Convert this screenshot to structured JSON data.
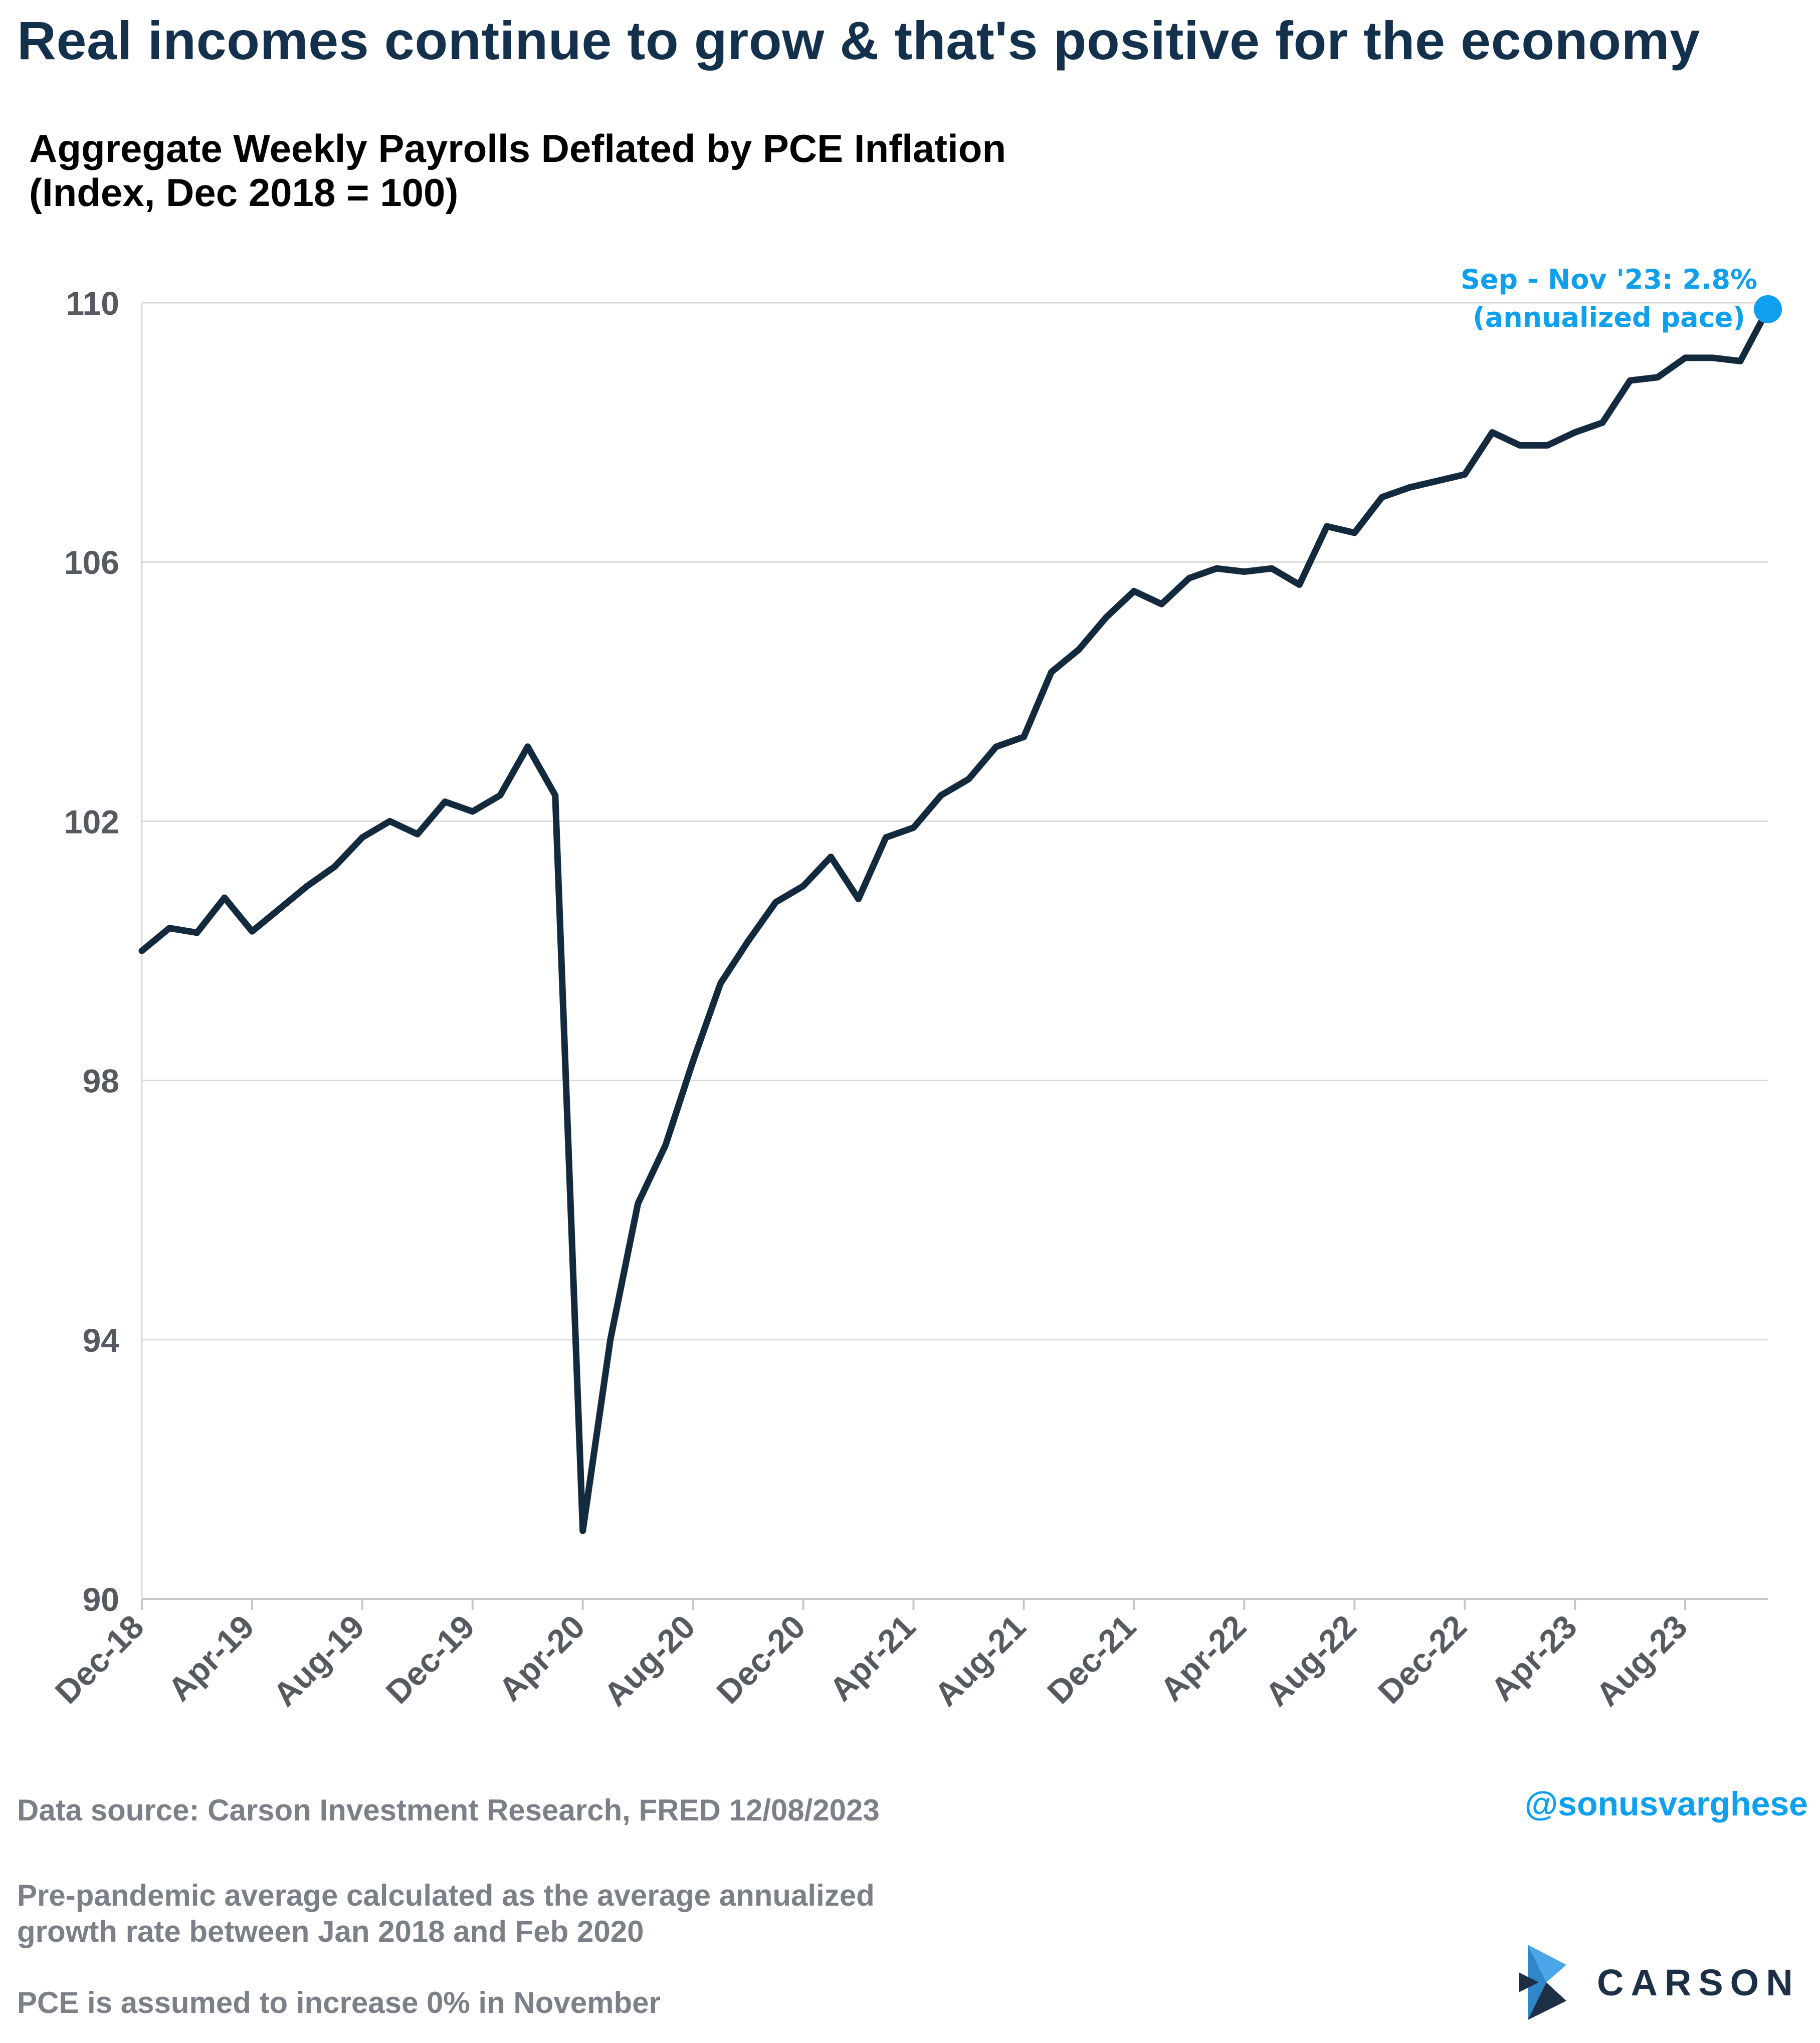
{
  "headline": "Real incomes continue to grow & that's positive for the economy",
  "subtitle": {
    "line1": "Aggregate Weekly Payrolls Deflated by PCE Inflation",
    "line2": "(Index, Dec 2018 = 100)"
  },
  "colors": {
    "headline": "#13304d",
    "line": "#13293d",
    "accent": "#0ea0ee",
    "gridline": "#d9d9d9",
    "axis_text": "#555a60",
    "footer_text": "#7b8088"
  },
  "chart_data": {
    "type": "line",
    "title": "Aggregate Weekly Payrolls Deflated by PCE Inflation",
    "subtitle": "(Index, Dec 2018 = 100)",
    "xlabel": "",
    "ylabel": "",
    "ylim": [
      90,
      110
    ],
    "yticks": [
      90,
      94,
      98,
      102,
      106,
      110
    ],
    "grid": "horizontal",
    "x_tick_labels": [
      "Dec-18",
      "Apr-19",
      "Aug-19",
      "Dec-19",
      "Apr-20",
      "Aug-20",
      "Dec-20",
      "Apr-21",
      "Aug-21",
      "Dec-21",
      "Apr-22",
      "Aug-22",
      "Dec-22",
      "Apr-23",
      "Aug-23"
    ],
    "x": [
      "Dec-18",
      "Jan-19",
      "Feb-19",
      "Mar-19",
      "Apr-19",
      "May-19",
      "Jun-19",
      "Jul-19",
      "Aug-19",
      "Sep-19",
      "Oct-19",
      "Nov-19",
      "Dec-19",
      "Jan-20",
      "Feb-20",
      "Mar-20",
      "Apr-20",
      "May-20",
      "Jun-20",
      "Jul-20",
      "Aug-20",
      "Sep-20",
      "Oct-20",
      "Nov-20",
      "Dec-20",
      "Jan-21",
      "Feb-21",
      "Mar-21",
      "Apr-21",
      "May-21",
      "Jun-21",
      "Jul-21",
      "Aug-21",
      "Sep-21",
      "Oct-21",
      "Nov-21",
      "Dec-21",
      "Jan-22",
      "Feb-22",
      "Mar-22",
      "Apr-22",
      "May-22",
      "Jun-22",
      "Jul-22",
      "Aug-22",
      "Sep-22",
      "Oct-22",
      "Nov-22",
      "Dec-22",
      "Jan-23",
      "Feb-23",
      "Mar-23",
      "Apr-23",
      "May-23",
      "Jun-23",
      "Jul-23",
      "Aug-23",
      "Sep-23",
      "Oct-23",
      "Nov-23"
    ],
    "series": [
      {
        "values": [
          100.0,
          100.35,
          100.28,
          100.82,
          100.3,
          100.65,
          101.0,
          101.3,
          101.75,
          102.0,
          101.8,
          102.3,
          102.15,
          102.4,
          103.15,
          102.4,
          91.05,
          94.0,
          96.1,
          97.0,
          98.3,
          99.5,
          100.15,
          100.75,
          101.0,
          101.45,
          100.8,
          101.75,
          101.9,
          102.4,
          102.65,
          103.15,
          103.3,
          104.3,
          104.65,
          105.15,
          105.55,
          105.35,
          105.75,
          105.9,
          105.85,
          105.9,
          105.65,
          106.55,
          106.45,
          107.0,
          107.15,
          107.25,
          107.35,
          108.0,
          107.8,
          107.8,
          108.0,
          108.15,
          108.8,
          108.85,
          109.15,
          109.15,
          109.1,
          109.9
        ]
      }
    ],
    "annotation": {
      "line1": "Sep - Nov '23: 2.8%",
      "line2": "(annualized pace)"
    }
  },
  "footer": {
    "source": "Data source: Carson Investment Research, FRED   12/08/2023",
    "note1_line1": "Pre-pandemic average calculated as the average annualized",
    "note1_line2": "growth rate between Jan 2018 and Feb 2020",
    "note2": "PCE is assumed to increase 0% in November",
    "handle": "@sonusvarghese",
    "logo": "CARSON"
  }
}
